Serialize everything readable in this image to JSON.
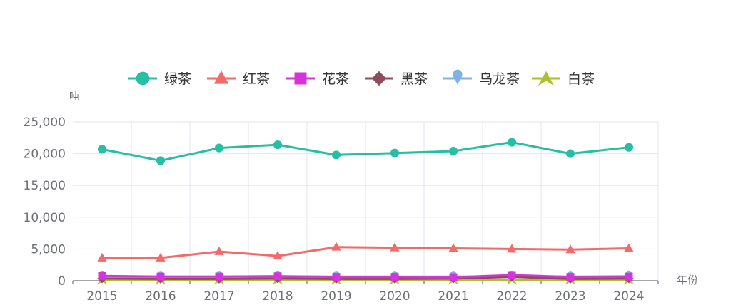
{
  "chart_data": {
    "type": "line",
    "title": "",
    "ylabel": "吨",
    "xlabel": "年份",
    "categories": [
      "2015",
      "2016",
      "2017",
      "2018",
      "2019",
      "2020",
      "2021",
      "2022",
      "2023",
      "2024"
    ],
    "ylim": [
      0,
      25000
    ],
    "yticks": [
      0,
      5000,
      10000,
      15000,
      20000,
      25000
    ],
    "ytick_labels": [
      "0",
      "5,000",
      "10,000",
      "15,000",
      "20,000",
      "25,000"
    ],
    "grid": true,
    "legend_position": "top",
    "series": [
      {
        "name": "绿茶",
        "color": "#26bfa4",
        "marker": "circle",
        "values": [
          20700,
          18900,
          20900,
          21400,
          19800,
          20100,
          20400,
          21800,
          20000,
          21000
        ]
      },
      {
        "name": "红茶",
        "color": "#f26a6a",
        "marker": "triangle",
        "values": [
          3600,
          3600,
          4600,
          3900,
          5300,
          5200,
          5100,
          5000,
          4900,
          5100
        ]
      },
      {
        "name": "花茶",
        "color": "#d534d9",
        "marker": "square",
        "values": [
          750,
          650,
          650,
          700,
          600,
          600,
          550,
          900,
          600,
          650
        ]
      },
      {
        "name": "黑茶",
        "color": "#8e4d5c",
        "marker": "diamond",
        "values": [
          350,
          300,
          300,
          350,
          300,
          300,
          350,
          600,
          300,
          350
        ]
      },
      {
        "name": "乌龙茶",
        "color": "#7fb3e6",
        "marker": "pin",
        "values": [
          700,
          650,
          650,
          700,
          650,
          650,
          650,
          700,
          650,
          700
        ]
      },
      {
        "name": "白茶",
        "color": "#a8c22b",
        "marker": "arrow",
        "values": [
          100,
          100,
          100,
          100,
          100,
          100,
          100,
          100,
          100,
          100
        ]
      }
    ]
  }
}
